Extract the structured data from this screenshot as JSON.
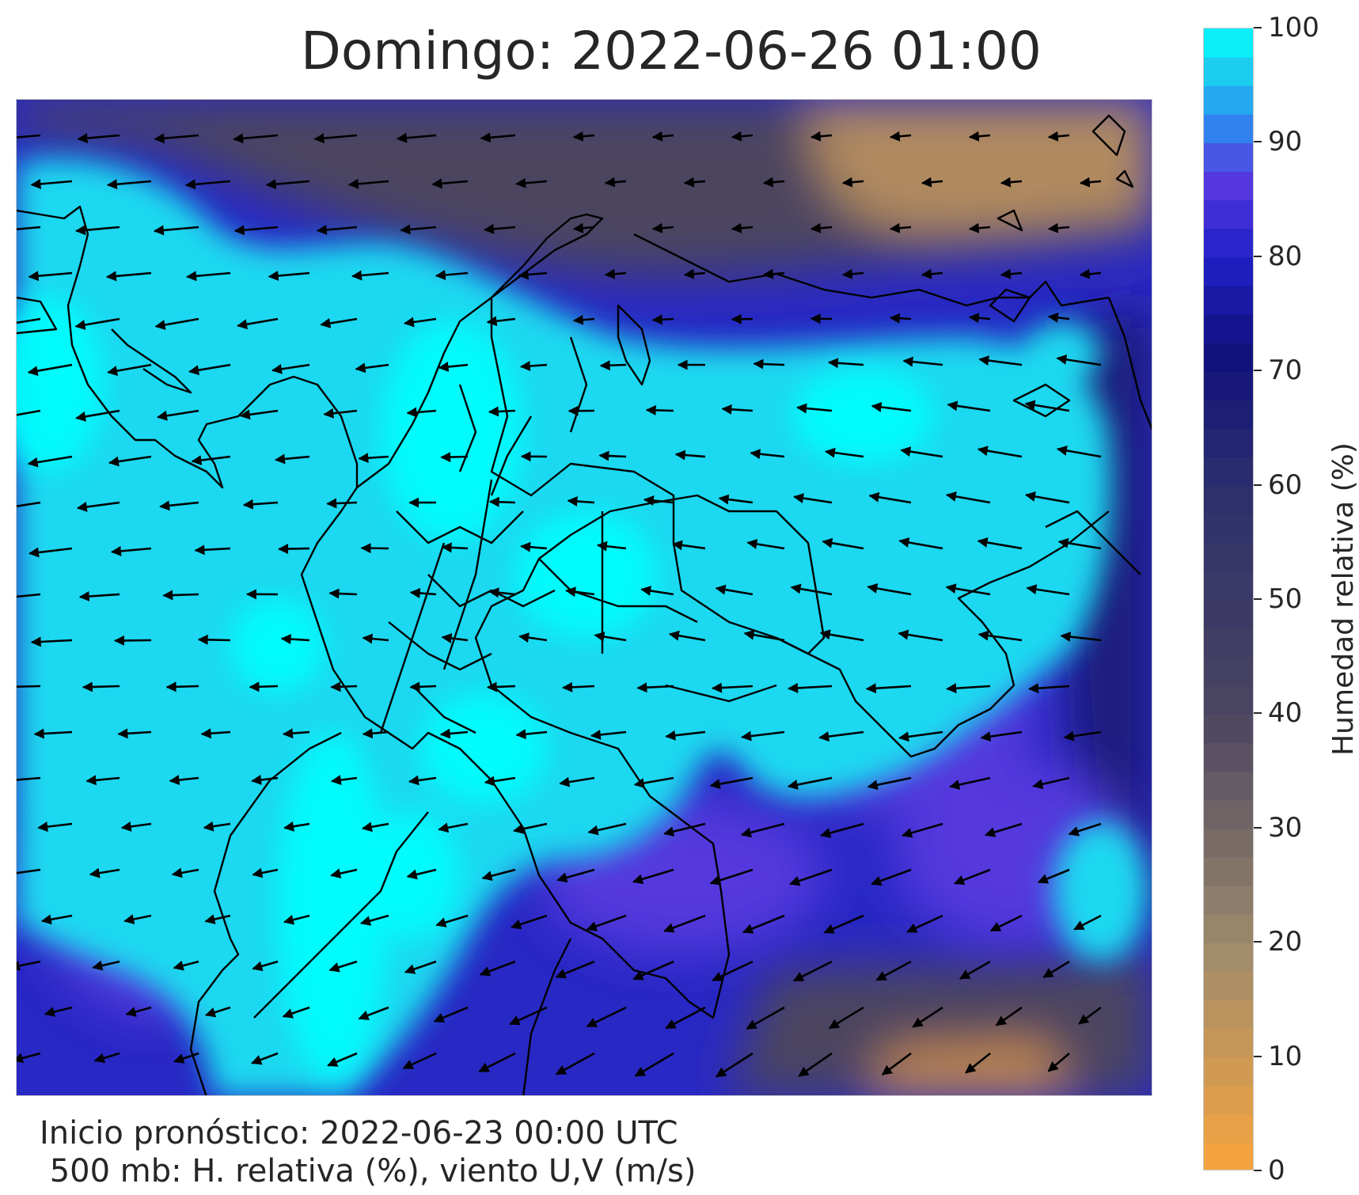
{
  "title": "Domingo: 2022-06-26 01:00",
  "footer": {
    "line1": "Inicio pronóstico: 2022-06-23 00:00 UTC",
    "line2": " 500 mb: H. relativa (%), viento U,V (m/s)"
  },
  "colorbar": {
    "label": "Humedad relativa (%)",
    "range": [
      0,
      100
    ],
    "ticks": [
      "0",
      "10",
      "20",
      "30",
      "40",
      "50",
      "60",
      "70",
      "80",
      "90",
      "100"
    ],
    "colors": {
      "0": "#f9a63e",
      "20": "#9d8a6c",
      "40": "#4b4560",
      "60": "#2c2f6c",
      "72": "#10107e",
      "80": "#2020c8",
      "87": "#5a3ae0",
      "92": "#2a8ef0",
      "97": "#1ad8f0",
      "100": "#00ffff"
    }
  },
  "map": {
    "field": "500 mb relative humidity with U,V wind vectors",
    "wind_direction": "mostly westward (easterly flow), turning south-westward in the south-east",
    "coastline_color": "#000000"
  }
}
